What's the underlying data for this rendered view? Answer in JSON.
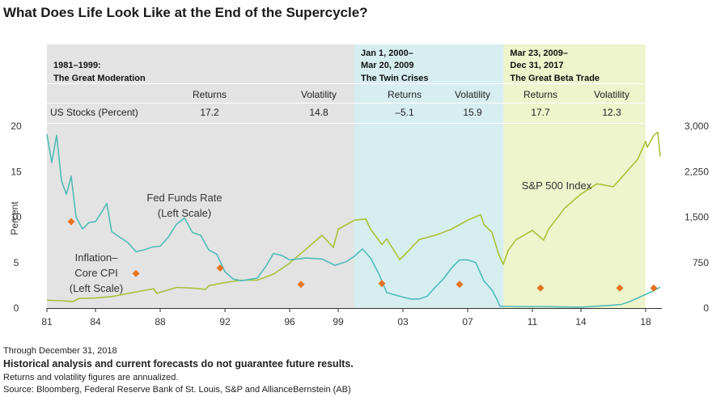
{
  "title": "What Does Life Look Like at the End of the Supercycle?",
  "colors": {
    "era1_bg": "#e3e3e3",
    "era2_bg": "#d6eef0",
    "era3_bg": "#eef4cc",
    "fed_funds": "#4fbcb7",
    "sp500": "#a6c23a",
    "inflation": "#e8731f"
  },
  "table": {
    "row_label": "US Stocks (Percent)",
    "eras": [
      {
        "name_line1": "1981–1999:",
        "name_line2": "The Great Moderation",
        "returns_label": "Returns",
        "volatility_label": "Volatility",
        "returns": "17.2",
        "volatility": "14.8"
      },
      {
        "name_line0": "Jan 1, 2000–",
        "name_line1": "Mar 20, 2009",
        "name_line2": "The Twin Crises",
        "returns_label": "Returns",
        "volatility_label": "Volatility",
        "returns": "–5.1",
        "volatility": "15.9"
      },
      {
        "name_line0": "Mar 23, 2009–",
        "name_line1": "Dec 31, 2017",
        "name_line2": "The Great Beta Trade",
        "returns_label": "Returns",
        "volatility_label": "Volatility",
        "returns": "17.7",
        "volatility": "12.3"
      }
    ]
  },
  "labels": {
    "fed_line1": "Fed Funds Rate",
    "fed_line2": "(Left Scale)",
    "infl_line1": "Inflation–",
    "infl_line2": "Core CPI",
    "infl_line3": "(Left Scale)",
    "sp_label": "S&P 500 Index"
  },
  "footer": {
    "line1": "Through December 31, 2018",
    "line2": "Historical analysis and current forecasts do not guarantee future results.",
    "line3": "Returns and volatility figures are annualized.",
    "line4": "Source: Bloomberg, Federal Reserve Bank of St. Louis, S&P and AllianceBernstein (AB)"
  },
  "chart_data": {
    "type": "line",
    "ylabel": "Percent",
    "xlim": [
      1981,
      2019
    ],
    "ylim_left": [
      0,
      20
    ],
    "ylim_right": [
      0,
      3000
    ],
    "x_ticks": [
      1981,
      1984,
      1988,
      1992,
      1996,
      1999,
      2003,
      2007,
      2011,
      2014,
      2018
    ],
    "x_tick_labels": [
      "81",
      "84",
      "88",
      "92",
      "96",
      "99",
      "03",
      "07",
      "11",
      "14",
      "18"
    ],
    "y_left_ticks": [
      0,
      5,
      10,
      15,
      20
    ],
    "y_left_tick_labels": [
      "0",
      "5",
      "10",
      "15",
      "20"
    ],
    "y_right_ticks": [
      0,
      750,
      1500,
      2250,
      3000
    ],
    "y_right_tick_labels": [
      "0",
      "750",
      "1,500",
      "2,250",
      "3,000"
    ],
    "eras": [
      {
        "start": 1981,
        "end": 2000.0
      },
      {
        "start": 2000.0,
        "end": 2009.22
      },
      {
        "start": 2009.22,
        "end": 2017.99
      }
    ],
    "series": [
      {
        "name": "Fed Funds Rate",
        "axis": "left",
        "x": [
          1981.0,
          1981.3,
          1981.6,
          1981.9,
          1982.2,
          1982.5,
          1982.8,
          1983.2,
          1983.6,
          1984.0,
          1984.4,
          1984.7,
          1985.0,
          1985.5,
          1986.0,
          1986.5,
          1987.0,
          1987.5,
          1988.0,
          1988.5,
          1989.0,
          1989.5,
          1990.0,
          1990.5,
          1991.0,
          1991.5,
          1992.0,
          1992.5,
          1993.0,
          1994.0,
          1994.5,
          1995.0,
          1995.5,
          1996.0,
          1997.0,
          1998.0,
          1998.8,
          1999.5,
          2000.0,
          2000.5,
          2001.0,
          2001.5,
          2002.0,
          2003.0,
          2003.5,
          2004.0,
          2004.5,
          2005.0,
          2005.5,
          2006.0,
          2006.5,
          2007.0,
          2007.5,
          2008.0,
          2008.5,
          2008.8,
          2009.0,
          2010.0,
          2012.0,
          2014.0,
          2015.9,
          2016.5,
          2017.0,
          2017.5,
          2018.0,
          2018.5,
          2018.9
        ],
        "y": [
          19.1,
          16.0,
          19.0,
          14.0,
          12.5,
          14.5,
          10.0,
          8.7,
          9.4,
          9.5,
          10.6,
          11.5,
          8.4,
          7.8,
          7.2,
          6.2,
          6.4,
          6.7,
          6.8,
          7.8,
          9.2,
          9.9,
          8.3,
          8.0,
          6.4,
          5.9,
          4.0,
          3.2,
          3.0,
          3.3,
          4.5,
          6.0,
          5.8,
          5.3,
          5.5,
          5.4,
          4.7,
          5.1,
          5.7,
          6.5,
          5.5,
          3.8,
          1.7,
          1.2,
          1.0,
          1.0,
          1.3,
          2.3,
          3.2,
          4.4,
          5.3,
          5.3,
          5.0,
          3.0,
          2.0,
          1.0,
          0.2,
          0.15,
          0.15,
          0.1,
          0.3,
          0.4,
          0.7,
          1.1,
          1.5,
          1.9,
          2.3
        ]
      },
      {
        "name": "S&P 500 Index",
        "axis": "right",
        "x": [
          1981.0,
          1982.0,
          1982.6,
          1983.0,
          1984.0,
          1985.0,
          1986.0,
          1987.6,
          1987.8,
          1988.0,
          1989.0,
          1990.0,
          1990.8,
          1991.0,
          1992.0,
          1993.0,
          1994.0,
          1995.0,
          1996.0,
          1997.0,
          1998.0,
          1998.7,
          1999.0,
          2000.0,
          2000.7,
          2001.0,
          2001.7,
          2002.0,
          2002.8,
          2003.0,
          2004.0,
          2005.0,
          2006.0,
          2007.0,
          2007.8,
          2008.0,
          2008.5,
          2008.9,
          2009.2,
          2009.5,
          2010.0,
          2011.0,
          2011.7,
          2012.0,
          2013.0,
          2014.0,
          2015.0,
          2016.0,
          2016.5,
          2017.0,
          2017.5,
          2018.0,
          2018.1,
          2018.5,
          2018.75,
          2018.9
        ],
        "y": [
          130,
          120,
          105,
          160,
          165,
          190,
          240,
          320,
          240,
          260,
          340,
          330,
          310,
          370,
          420,
          460,
          460,
          560,
          740,
          970,
          1200,
          1000,
          1300,
          1450,
          1470,
          1300,
          1050,
          1140,
          800,
          850,
          1130,
          1200,
          1300,
          1450,
          1540,
          1380,
          1250,
          900,
          720,
          950,
          1130,
          1280,
          1120,
          1300,
          1650,
          1880,
          2050,
          2000,
          2150,
          2300,
          2450,
          2750,
          2650,
          2850,
          2900,
          2500
        ]
      },
      {
        "name": "Inflation–Core CPI",
        "axis": "left",
        "x": [
          1982.5,
          1986.5,
          1991.7,
          1996.7,
          2001.7,
          2006.5,
          2011.5,
          2016.4,
          2018.5
        ],
        "y": [
          9.5,
          3.8,
          4.4,
          2.6,
          2.7,
          2.6,
          2.2,
          2.2,
          2.2
        ]
      }
    ]
  }
}
